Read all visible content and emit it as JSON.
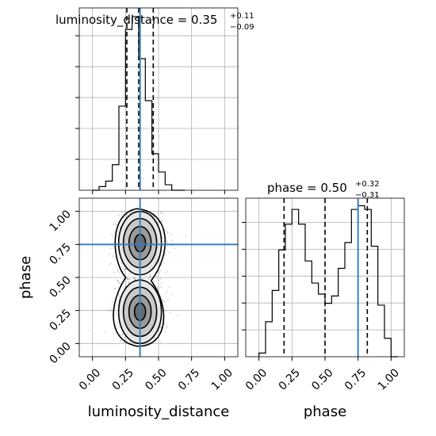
{
  "chart_data": {
    "type": "corner",
    "parameters": [
      "luminosity_distance",
      "phase"
    ],
    "titles": {
      "luminosity_distance": {
        "label": "luminosity_distance = 0.35",
        "plus": "+0.11",
        "minus": "−0.09"
      },
      "phase": {
        "label": "phase = 0.50",
        "plus": "+0.32",
        "minus": "−0.31"
      }
    },
    "axis_labels": {
      "x_left": "luminosity_distance",
      "x_right": "phase",
      "y_left": "phase"
    },
    "axis_range": [
      -0.1,
      1.1
    ],
    "tick_values": [
      0.0,
      0.25,
      0.5,
      0.75,
      1.0
    ],
    "tick_labels": [
      "0.00",
      "0.25",
      "0.50",
      "0.75",
      "1.00"
    ],
    "truth": {
      "luminosity_distance": 0.36,
      "phase": 0.75
    },
    "truth_color": "#3a7ebf",
    "quantiles": {
      "luminosity_distance": [
        0.26,
        0.35,
        0.46
      ],
      "phase": [
        0.19,
        0.5,
        0.82
      ]
    },
    "hist_luminosity_distance": {
      "edges": [
        0.0,
        0.05,
        0.1,
        0.15,
        0.2,
        0.25,
        0.3,
        0.35,
        0.4,
        0.45,
        0.5,
        0.55,
        0.6,
        0.65,
        0.7
      ],
      "counts": [
        0,
        2,
        5,
        14,
        46,
        88,
        95,
        72,
        49,
        20,
        10,
        3,
        0,
        0
      ]
    },
    "hist_phase": {
      "edges": [
        0.0,
        0.05,
        0.1,
        0.15,
        0.2,
        0.25,
        0.3,
        0.35,
        0.4,
        0.45,
        0.5,
        0.55,
        0.6,
        0.65,
        0.7,
        0.75,
        0.8,
        0.85,
        0.9,
        0.95,
        1.0,
        1.05
      ],
      "counts": [
        2,
        19,
        36,
        58,
        72,
        80,
        72,
        52,
        40,
        34,
        29,
        33,
        48,
        62,
        80,
        82,
        80,
        60,
        28,
        10,
        0
      ]
    },
    "density_modes": [
      {
        "x": 0.36,
        "y": 0.76
      },
      {
        "x": 0.36,
        "y": 0.24
      }
    ],
    "grid": true
  }
}
